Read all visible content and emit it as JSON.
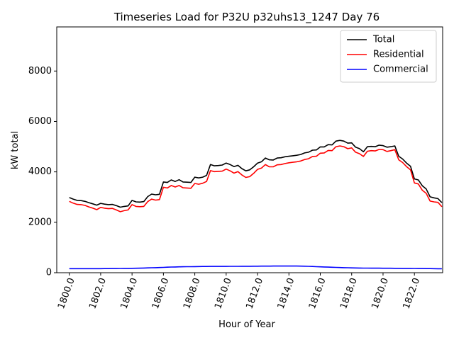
{
  "chart_data": {
    "type": "line",
    "title": "Timeseries Load for P32U p32uhs13_1247  Day 76",
    "xlabel": "Hour of Year",
    "ylabel": "kW total",
    "xlim": [
      1799.2,
      1823.8
    ],
    "ylim": [
      0,
      9750
    ],
    "xticks": [
      1800,
      1802,
      1804,
      1806,
      1808,
      1810,
      1812,
      1814,
      1816,
      1818,
      1820,
      1822
    ],
    "xtick_labels": [
      "1800.0",
      "1802.0",
      "1804.0",
      "1806.0",
      "1808.0",
      "1810.0",
      "1812.0",
      "1814.0",
      "1816.0",
      "1818.0",
      "1820.0",
      "1822.0"
    ],
    "yticks": [
      0,
      2000,
      4000,
      6000,
      8000
    ],
    "ytick_labels": [
      "0",
      "2000",
      "4000",
      "6000",
      "8000"
    ],
    "grid": false,
    "legend_position": "top-right",
    "x": [
      1800.0,
      1800.25,
      1800.5,
      1800.75,
      1801.0,
      1801.25,
      1801.5,
      1801.75,
      1802.0,
      1802.25,
      1802.5,
      1802.75,
      1803.0,
      1803.25,
      1803.5,
      1803.75,
      1804.0,
      1804.25,
      1804.5,
      1804.75,
      1805.0,
      1805.25,
      1805.5,
      1805.75,
      1806.0,
      1806.25,
      1806.5,
      1806.75,
      1807.0,
      1807.25,
      1807.5,
      1807.75,
      1808.0,
      1808.25,
      1808.5,
      1808.75,
      1809.0,
      1809.25,
      1809.5,
      1809.75,
      1810.0,
      1810.25,
      1810.5,
      1810.75,
      1811.0,
      1811.25,
      1811.5,
      1811.75,
      1812.0,
      1812.25,
      1812.5,
      1812.75,
      1813.0,
      1813.25,
      1813.5,
      1813.75,
      1814.0,
      1814.25,
      1814.5,
      1814.75,
      1815.0,
      1815.25,
      1815.5,
      1815.75,
      1816.0,
      1816.25,
      1816.5,
      1816.75,
      1817.0,
      1817.25,
      1817.5,
      1817.75,
      1818.0,
      1818.25,
      1818.5,
      1818.75,
      1819.0,
      1819.25,
      1819.5,
      1819.75,
      1820.0,
      1820.25,
      1820.5,
      1820.75,
      1821.0,
      1821.25,
      1821.5,
      1821.75,
      1822.0,
      1822.25,
      1822.5,
      1822.75,
      1823.0,
      1823.25,
      1823.5
    ],
    "series": [
      {
        "name": "Total",
        "color": "#000000",
        "values": [
          2980,
          2920,
          2870,
          2860,
          2830,
          2780,
          2730,
          2680,
          2750,
          2720,
          2700,
          2710,
          2660,
          2600,
          2630,
          2650,
          2870,
          2810,
          2800,
          2820,
          3020,
          3120,
          3090,
          3110,
          3600,
          3580,
          3680,
          3620,
          3690,
          3600,
          3590,
          3580,
          3790,
          3760,
          3790,
          3860,
          4290,
          4240,
          4250,
          4270,
          4350,
          4290,
          4210,
          4260,
          4130,
          4040,
          4080,
          4200,
          4350,
          4400,
          4550,
          4480,
          4470,
          4550,
          4560,
          4600,
          4620,
          4640,
          4660,
          4690,
          4750,
          4780,
          4860,
          4870,
          4990,
          4990,
          5080,
          5070,
          5220,
          5250,
          5220,
          5140,
          5150,
          4980,
          4920,
          4800,
          5000,
          5010,
          5000,
          5060,
          5040,
          4980,
          5000,
          5030,
          4620,
          4510,
          4350,
          4220,
          3720,
          3680,
          3450,
          3320,
          3010,
          2970,
          2940
        ],
        "end_value": 2780
      },
      {
        "name": "Residential",
        "color": "#ff0000",
        "values": [
          2830,
          2760,
          2710,
          2700,
          2670,
          2610,
          2560,
          2500,
          2590,
          2560,
          2540,
          2550,
          2490,
          2420,
          2460,
          2490,
          2700,
          2630,
          2620,
          2630,
          2820,
          2920,
          2880,
          2900,
          3390,
          3360,
          3460,
          3400,
          3460,
          3370,
          3360,
          3350,
          3540,
          3510,
          3550,
          3620,
          4050,
          4010,
          4020,
          4030,
          4110,
          4040,
          3950,
          4010,
          3880,
          3780,
          3810,
          3940,
          4100,
          4150,
          4290,
          4200,
          4200,
          4280,
          4290,
          4330,
          4360,
          4380,
          4400,
          4430,
          4490,
          4520,
          4610,
          4620,
          4740,
          4750,
          4850,
          4840,
          5000,
          5030,
          5000,
          4920,
          4950,
          4780,
          4720,
          4610,
          4820,
          4840,
          4830,
          4890,
          4880,
          4810,
          4840,
          4880,
          4480,
          4370,
          4210,
          4080,
          3560,
          3520,
          3270,
          3150,
          2840,
          2810,
          2790
        ],
        "end_value": 2620
      },
      {
        "name": "Commercial",
        "color": "#0000ff",
        "values": [
          160,
          160,
          160,
          160,
          160,
          160,
          160,
          160,
          160,
          162,
          163,
          165,
          166,
          168,
          170,
          172,
          175,
          178,
          181,
          185,
          190,
          196,
          200,
          206,
          212,
          218,
          224,
          228,
          232,
          235,
          238,
          240,
          242,
          244,
          246,
          248,
          249,
          250,
          250,
          251,
          251,
          252,
          253,
          254,
          255,
          256,
          257,
          258,
          259,
          260,
          261,
          262,
          263,
          264,
          264,
          265,
          265,
          265,
          264,
          262,
          258,
          252,
          246,
          240,
          234,
          228,
          222,
          216,
          210,
          205,
          200,
          196,
          192,
          188,
          185,
          183,
          182,
          181,
          180,
          179,
          178,
          177,
          176,
          175,
          173,
          172,
          171,
          170,
          168,
          166,
          165,
          164,
          162,
          160,
          158
        ],
        "end_value": 156
      }
    ]
  }
}
